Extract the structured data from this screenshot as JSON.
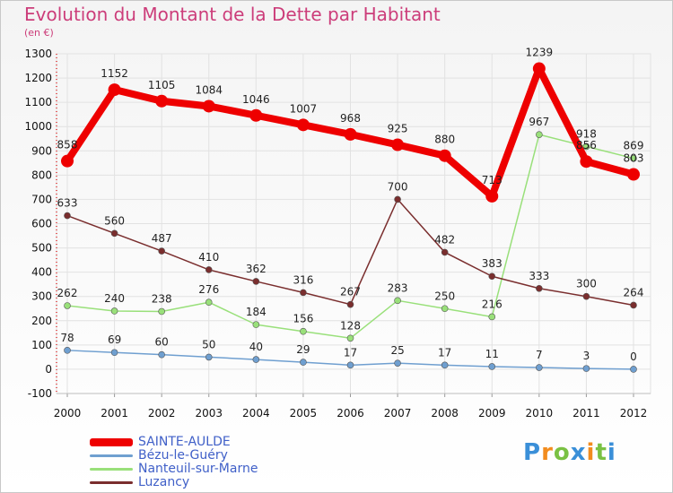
{
  "title": "Evolution du Montant de la Dette par Habitant",
  "subtitle": "(en €)",
  "logo": {
    "letters": [
      {
        "ch": "P",
        "color": "#3a8fd8"
      },
      {
        "ch": "r",
        "color": "#f28c1e"
      },
      {
        "ch": "o",
        "color": "#7ac143"
      },
      {
        "ch": "x",
        "color": "#3a8fd8"
      },
      {
        "ch": "i",
        "color": "#f28c1e"
      },
      {
        "ch": "t",
        "color": "#7ac143"
      },
      {
        "ch": "i",
        "color": "#3a8fd8"
      }
    ]
  },
  "chart_data": {
    "type": "line",
    "title": "Evolution du Montant de la Dette par Habitant",
    "subtitle": "(en €)",
    "xlabel": "",
    "ylabel": "",
    "ylim": [
      -100,
      1300
    ],
    "yticks": [
      -100,
      0,
      100,
      200,
      300,
      400,
      500,
      600,
      700,
      800,
      900,
      1000,
      1100,
      1200,
      1300
    ],
    "categories": [
      "2000",
      "2001",
      "2002",
      "2003",
      "2004",
      "2005",
      "2006",
      "2007",
      "2008",
      "2009",
      "2010",
      "2011",
      "2012"
    ],
    "grid": true,
    "legend_position": "bottom-left",
    "series": [
      {
        "name": "SAINTE-AULDE",
        "color": "#ee0000",
        "values": [
          858,
          1152,
          1105,
          1084,
          1046,
          1007,
          968,
          925,
          880,
          713,
          1239,
          856,
          803
        ]
      },
      {
        "name": "Bézu-le-Guéry",
        "color": "#6f9fd0",
        "values": [
          78,
          69,
          60,
          50,
          40,
          29,
          17,
          25,
          17,
          11,
          7,
          3,
          0
        ]
      },
      {
        "name": "Nanteuil-sur-Marne",
        "color": "#99e07a",
        "values": [
          262,
          240,
          238,
          276,
          184,
          156,
          128,
          283,
          250,
          216,
          967,
          918,
          869
        ]
      },
      {
        "name": "Luzancy",
        "color": "#7a2e2e",
        "values": [
          633,
          560,
          487,
          410,
          362,
          316,
          267,
          700,
          482,
          383,
          333,
          300,
          264
        ]
      }
    ]
  }
}
